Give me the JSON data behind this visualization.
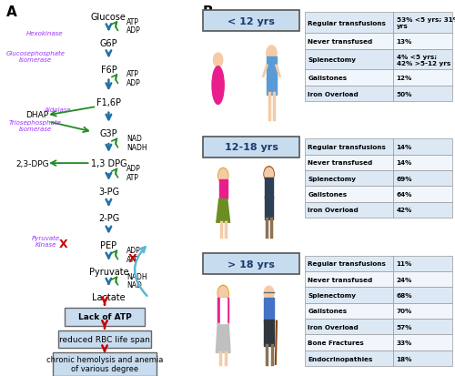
{
  "age_groups": [
    {
      "label": "< 12 yrs",
      "rows": [
        [
          "Regular transfusions",
          "53% <5 yrs; 31% >5-12\nyrs"
        ],
        [
          "Never transfused",
          "13%"
        ],
        [
          "Splenectomy",
          "4% <5 yrs;\n42% >5-12 yrs"
        ],
        [
          "Gallstones",
          "12%"
        ],
        [
          "Iron Overload",
          "50%"
        ]
      ]
    },
    {
      "label": "12-18 yrs",
      "rows": [
        [
          "Regular transfusions",
          "14%"
        ],
        [
          "Never transfused",
          "14%"
        ],
        [
          "Splenectomy",
          "69%"
        ],
        [
          "Gallstones",
          "64%"
        ],
        [
          "Iron Overload",
          "42%"
        ]
      ]
    },
    {
      "label": "> 18 yrs",
      "rows": [
        [
          "Regular transfusions",
          "11%"
        ],
        [
          "Never transfused",
          "24%"
        ],
        [
          "Splenectomy",
          "68%"
        ],
        [
          "Gallstones",
          "70%"
        ],
        [
          "Iron Overload",
          "57%"
        ],
        [
          "Bone Fractures",
          "33%"
        ],
        [
          "Endocrinopathies",
          "18%"
        ]
      ]
    }
  ],
  "colors": {
    "arrow_blue": "#2471A3",
    "arrow_green": "#228B22",
    "enzyme_purple": "#9B30FF",
    "x_red": "#CC0000",
    "box_bg": "#C8DCF0",
    "box_border": "#666666",
    "table_bg1": "#DCE9F5",
    "table_bg2": "#F0F6FC",
    "age_box_bg": "#C8DCF0",
    "age_box_border": "#666666",
    "cyan_arrow": "#5BB8D4",
    "red_arrow": "#CC0000"
  }
}
